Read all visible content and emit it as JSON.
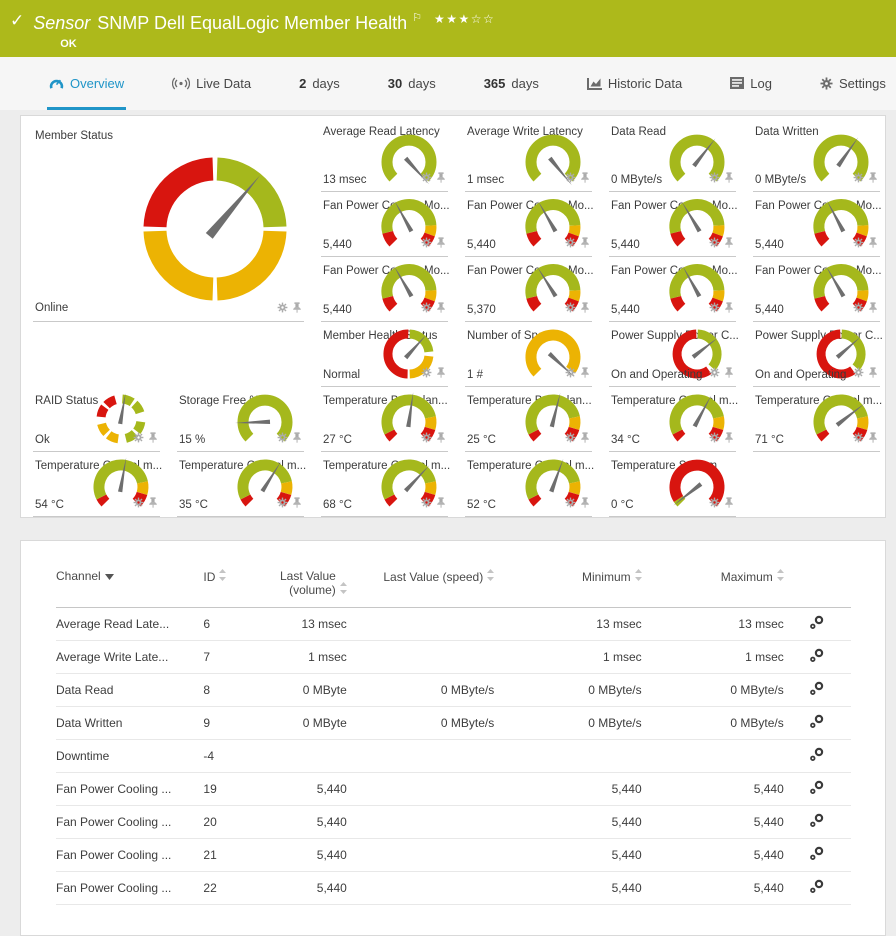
{
  "header": {
    "kicker": "Sensor",
    "title": "SNMP Dell EqualLogic Member Health",
    "status": "OK",
    "stars": {
      "filled": 3,
      "total": 5
    }
  },
  "colors": {
    "header_bg": "#adb91b",
    "accent_blue": "#2095c8",
    "needle": "#6e6e6e",
    "gauge": {
      "green": "#a5b81c",
      "yellow": "#ecb303",
      "red": "#d8150f"
    }
  },
  "tabs": [
    {
      "id": "overview",
      "label": "Overview",
      "icon": "gauge-icon",
      "active": true
    },
    {
      "id": "live-data",
      "label": "Live Data",
      "icon": "live-data-icon"
    },
    {
      "id": "2-days",
      "prefix": "2",
      "label": "days"
    },
    {
      "id": "30-days",
      "prefix": "30",
      "label": "days"
    },
    {
      "id": "365-days",
      "prefix": "365",
      "label": "days"
    },
    {
      "id": "historic-data",
      "label": "Historic Data",
      "icon": "chart-icon"
    },
    {
      "id": "log",
      "label": "Log",
      "icon": "log-icon"
    },
    {
      "id": "settings",
      "label": "Settings",
      "icon": "gear-icon"
    }
  ],
  "gauge_presets": {
    "arc-green": [
      [
        "green",
        225,
        495
      ]
    ],
    "arc-yellow": [
      [
        "yellow",
        225,
        487
      ]
    ],
    "arc-fan": [
      [
        "red",
        225,
        256
      ],
      [
        "green",
        256,
        446
      ],
      [
        "yellow",
        446,
        470
      ],
      [
        "red",
        470,
        495
      ]
    ],
    "arc-temp": [
      [
        "red",
        225,
        243
      ],
      [
        "green",
        243,
        438
      ],
      [
        "yellow",
        438,
        467
      ],
      [
        "red",
        467,
        495
      ]
    ],
    "arc-system": [
      [
        "green",
        225,
        237
      ],
      [
        "red",
        237,
        495
      ]
    ],
    "donut-quadrants": [
      [
        "red",
        272,
        358
      ],
      [
        "green",
        2,
        88
      ],
      [
        "yellow",
        92,
        178
      ],
      [
        "yellow",
        182,
        268
      ]
    ],
    "donut-health": [
      [
        "green",
        2,
        84
      ],
      [
        "yellow",
        96,
        178
      ],
      [
        "red",
        184,
        358
      ]
    ],
    "donut-power": [
      [
        "green",
        2,
        132
      ],
      [
        "red",
        144,
        358
      ]
    ],
    "donut-raid": [
      [
        "red",
        276,
        306
      ],
      [
        "red",
        314,
        344
      ],
      [
        "green",
        4,
        34
      ],
      [
        "green",
        42,
        72
      ],
      [
        "green",
        98,
        128
      ],
      [
        "green",
        136,
        166
      ],
      [
        "yellow",
        188,
        218
      ],
      [
        "yellow",
        226,
        256
      ]
    ]
  },
  "gauges": [
    {
      "id": "member-status",
      "title": "Member Status",
      "value": "Online",
      "col": 1,
      "row": 1,
      "colspan": 2,
      "rowspan": 3,
      "kind": "donut-large",
      "preset": "donut-quadrants",
      "needle": 40
    },
    {
      "id": "average-read-latency",
      "title": "Average Read Latency",
      "value": "13 msec",
      "col": 3,
      "row": 1,
      "kind": "arc",
      "preset": "arc-green",
      "needle": 138
    },
    {
      "id": "average-write-latency",
      "title": "Average Write Latency",
      "value": "1 msec",
      "col": 4,
      "row": 1,
      "kind": "arc",
      "preset": "arc-green",
      "needle": 141
    },
    {
      "id": "data-read",
      "title": "Data Read",
      "value": "0 MByte/s",
      "col": 5,
      "row": 1,
      "kind": "arc",
      "preset": "arc-green",
      "needle": 38
    },
    {
      "id": "data-written",
      "title": "Data Written",
      "value": "0 MByte/s",
      "col": 6,
      "row": 1,
      "kind": "arc",
      "preset": "arc-green",
      "needle": 35
    },
    {
      "id": "fan-power-cooling-1",
      "title": "Fan Power Cooling Mo...",
      "value": "5,440",
      "col": 3,
      "row": 2,
      "kind": "arc",
      "preset": "arc-fan",
      "needle": 331
    },
    {
      "id": "fan-power-cooling-2",
      "title": "Fan Power Cooling Mo...",
      "value": "5,440",
      "col": 4,
      "row": 2,
      "kind": "arc",
      "preset": "arc-fan",
      "needle": 330
    },
    {
      "id": "fan-power-cooling-3",
      "title": "Fan Power Cooling Mo...",
      "value": "5,440",
      "col": 5,
      "row": 2,
      "kind": "arc",
      "preset": "arc-fan",
      "needle": 329
    },
    {
      "id": "fan-power-cooling-4",
      "title": "Fan Power Cooling Mo...",
      "value": "5,440",
      "col": 6,
      "row": 2,
      "kind": "arc",
      "preset": "arc-fan",
      "needle": 332
    },
    {
      "id": "fan-power-cooling-5",
      "title": "Fan Power Cooling Mo...",
      "value": "5,440",
      "col": 3,
      "row": 3,
      "kind": "arc",
      "preset": "arc-fan",
      "needle": 330
    },
    {
      "id": "fan-power-cooling-6",
      "title": "Fan Power Cooling Mo...",
      "value": "5,370",
      "col": 4,
      "row": 3,
      "kind": "arc",
      "preset": "arc-fan",
      "needle": 328
    },
    {
      "id": "fan-power-cooling-7",
      "title": "Fan Power Cooling Mo...",
      "value": "5,440",
      "col": 5,
      "row": 3,
      "kind": "arc",
      "preset": "arc-fan",
      "needle": 331
    },
    {
      "id": "fan-power-cooling-8",
      "title": "Fan Power Cooling Mo...",
      "value": "5,440",
      "col": 6,
      "row": 3,
      "kind": "arc",
      "preset": "arc-fan",
      "needle": 330
    },
    {
      "id": "member-health-status",
      "title": "Member Health Status",
      "value": "Normal",
      "col": 3,
      "row": 4,
      "kind": "donut",
      "preset": "donut-health",
      "needle": 42
    },
    {
      "id": "number-of-spares",
      "title": "Number of Spares",
      "value": "1 #",
      "col": 4,
      "row": 4,
      "kind": "arc",
      "preset": "arc-yellow",
      "needle": 133
    },
    {
      "id": "power-supply-1",
      "title": "Power Supply Power C...",
      "value": "On and Operating",
      "col": 5,
      "row": 4,
      "kind": "donut",
      "preset": "donut-power",
      "needle": 52
    },
    {
      "id": "power-supply-2",
      "title": "Power Supply Power C...",
      "value": "On and Operating",
      "col": 6,
      "row": 4,
      "kind": "donut",
      "preset": "donut-power",
      "needle": 49
    },
    {
      "id": "raid-status",
      "title": "RAID Status",
      "value": "Ok",
      "col": 1,
      "row": 5,
      "kind": "donut",
      "preset": "donut-raid",
      "needle": 10
    },
    {
      "id": "storage-free",
      "title": "Storage Free %",
      "value": "15 %",
      "col": 2,
      "row": 5,
      "kind": "arc",
      "preset": "arc-green",
      "needle": 268
    },
    {
      "id": "temperature-backplane-1",
      "title": "Temperature Backplan...",
      "value": "27 °C",
      "col": 3,
      "row": 5,
      "kind": "arc",
      "preset": "arc-temp",
      "needle": 8
    },
    {
      "id": "temperature-backplane-2",
      "title": "Temperature Backplan...",
      "value": "25 °C",
      "col": 4,
      "row": 5,
      "kind": "arc",
      "preset": "arc-temp",
      "needle": 14
    },
    {
      "id": "temperature-control-1",
      "title": "Temperature Control m...",
      "value": "34 °C",
      "col": 5,
      "row": 5,
      "kind": "arc",
      "preset": "arc-temp",
      "needle": 28
    },
    {
      "id": "temperature-control-2",
      "title": "Temperature Control m...",
      "value": "71 °C",
      "col": 6,
      "row": 5,
      "kind": "arc",
      "preset": "arc-temp",
      "needle": 52
    },
    {
      "id": "temperature-control-3",
      "title": "Temperature Control m...",
      "value": "54 °C",
      "col": 1,
      "row": 6,
      "kind": "arc",
      "preset": "arc-temp",
      "needle": 10
    },
    {
      "id": "temperature-control-4",
      "title": "Temperature Control m...",
      "value": "35 °C",
      "col": 2,
      "row": 6,
      "kind": "arc",
      "preset": "arc-temp",
      "needle": 32
    },
    {
      "id": "temperature-control-5",
      "title": "Temperature Control m...",
      "value": "68 °C",
      "col": 3,
      "row": 6,
      "kind": "arc",
      "preset": "arc-temp",
      "needle": 43
    },
    {
      "id": "temperature-control-6",
      "title": "Temperature Control m...",
      "value": "52 °C",
      "col": 4,
      "row": 6,
      "kind": "arc",
      "preset": "arc-temp",
      "needle": 20
    },
    {
      "id": "temperature-system",
      "title": "Temperature System",
      "value": "0 °C",
      "col": 5,
      "row": 6,
      "kind": "arc",
      "preset": "arc-system",
      "needle": 232
    }
  ],
  "table": {
    "columns": [
      {
        "label": "Channel",
        "sort": "active-desc",
        "align": "left"
      },
      {
        "label": "ID",
        "sort": "inactive",
        "align": "left"
      },
      {
        "label": "Last Value (volume)",
        "sort": "inactive",
        "align": "right"
      },
      {
        "label": "Last Value (speed)",
        "sort": "inactive",
        "align": "right"
      },
      {
        "label": "Minimum",
        "sort": "inactive",
        "align": "right"
      },
      {
        "label": "Maximum",
        "sort": "inactive",
        "align": "right"
      },
      {
        "label": "",
        "sort": "none",
        "align": "center"
      }
    ],
    "rows": [
      {
        "channel": "Average Read Late...",
        "id": "6",
        "last_volume": "13 msec",
        "last_speed": "",
        "minimum": "13 msec",
        "maximum": "13 msec"
      },
      {
        "channel": "Average Write Late...",
        "id": "7",
        "last_volume": "1 msec",
        "last_speed": "",
        "minimum": "1 msec",
        "maximum": "1 msec"
      },
      {
        "channel": "Data Read",
        "id": "8",
        "last_volume": "0 MByte",
        "last_speed": "0 MByte/s",
        "minimum": "0 MByte/s",
        "maximum": "0 MByte/s"
      },
      {
        "channel": "Data Written",
        "id": "9",
        "last_volume": "0 MByte",
        "last_speed": "0 MByte/s",
        "minimum": "0 MByte/s",
        "maximum": "0 MByte/s"
      },
      {
        "channel": "Downtime",
        "id": "-4",
        "last_volume": "",
        "last_speed": "",
        "minimum": "",
        "maximum": ""
      },
      {
        "channel": "Fan Power Cooling ...",
        "id": "19",
        "last_volume": "5,440",
        "last_speed": "",
        "minimum": "5,440",
        "maximum": "5,440"
      },
      {
        "channel": "Fan Power Cooling ...",
        "id": "20",
        "last_volume": "5,440",
        "last_speed": "",
        "minimum": "5,440",
        "maximum": "5,440"
      },
      {
        "channel": "Fan Power Cooling ...",
        "id": "21",
        "last_volume": "5,440",
        "last_speed": "",
        "minimum": "5,440",
        "maximum": "5,440"
      },
      {
        "channel": "Fan Power Cooling ...",
        "id": "22",
        "last_volume": "5,440",
        "last_speed": "",
        "minimum": "5,440",
        "maximum": "5,440"
      }
    ]
  }
}
